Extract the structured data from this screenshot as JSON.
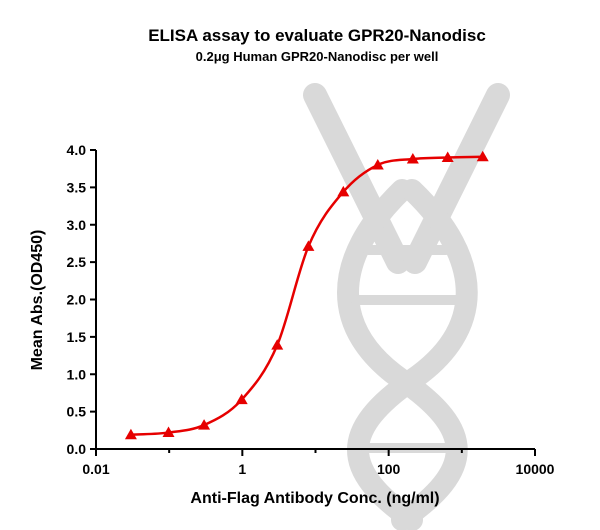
{
  "chart_data": {
    "type": "scatter",
    "title": "ELISA assay to evaluate GPR20-Nanodisc",
    "subtitle": "0.2μg Human GPR20-Nanodisc per well",
    "xlabel": "Anti-Flag Antibody Conc. (ng/ml)",
    "ylabel": "Mean Abs.(OD450)",
    "x_scale": "log",
    "xlim": [
      0.01,
      10000
    ],
    "ylim": [
      0,
      4.0
    ],
    "x_ticks": [
      0.01,
      1,
      100,
      10000
    ],
    "x_tick_labels": [
      "0.01",
      "1",
      "100",
      "10000"
    ],
    "y_ticks": [
      0,
      0.5,
      1.0,
      1.5,
      2.0,
      2.5,
      3.0,
      3.5,
      4.0
    ],
    "y_tick_labels": [
      "0.0",
      "0.5",
      "1.0",
      "1.5",
      "2.0",
      "2.5",
      "3.0",
      "3.5",
      "4.0"
    ],
    "grid": false,
    "legend": "none",
    "series": [
      {
        "color": "#e60000",
        "marker": "triangle",
        "fit": "sigmoid",
        "x": [
          0.03,
          0.098,
          0.3,
          0.98,
          3.0,
          8.0,
          24.0,
          71.0,
          214.0,
          641.0,
          1929.0
        ],
        "y": [
          0.19,
          0.22,
          0.32,
          0.66,
          1.39,
          2.71,
          3.44,
          3.8,
          3.88,
          3.9,
          3.91
        ]
      }
    ]
  }
}
